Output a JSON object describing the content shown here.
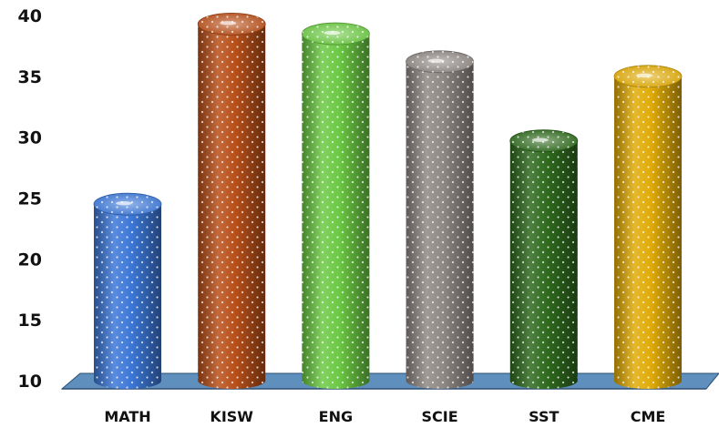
{
  "chart_data": {
    "type": "bar",
    "categories": [
      "MATH",
      "KISW",
      "ENG",
      "SCIE",
      "SST",
      "CME"
    ],
    "values": [
      24.5,
      39.3,
      38.5,
      36.2,
      29.7,
      35.0
    ],
    "ylim": [
      10,
      40
    ],
    "yticks": [
      10,
      15,
      20,
      25,
      30,
      35,
      40
    ],
    "grid": false,
    "legend": "none",
    "colors": [
      "#3d78d8",
      "#b8501a",
      "#6cc944",
      "#8f8884",
      "#2f6a1e",
      "#e0ab08"
    ],
    "floor_color": "#5f8fbd"
  }
}
